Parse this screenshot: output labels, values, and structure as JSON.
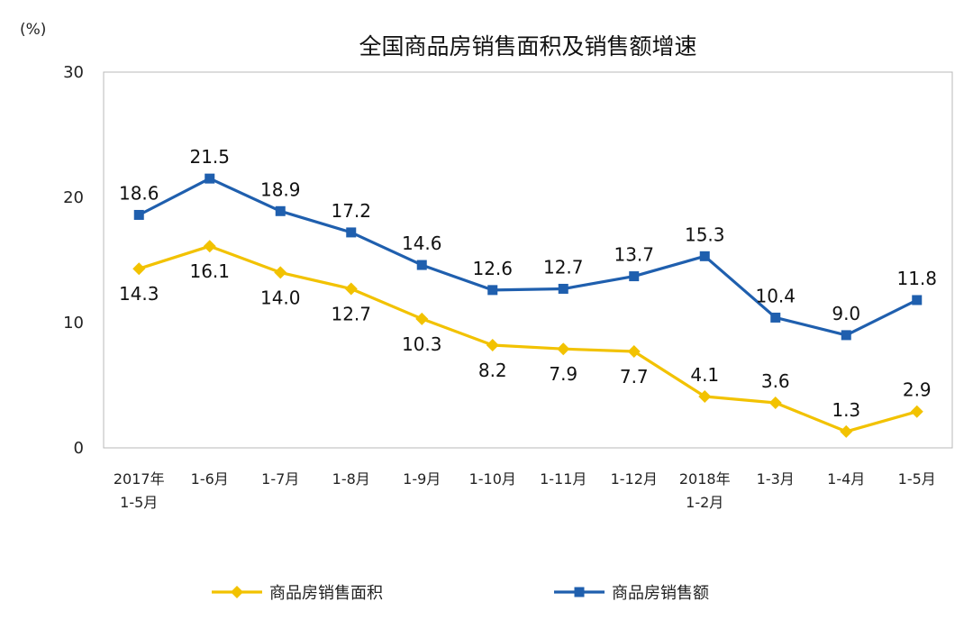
{
  "chart_data": {
    "type": "line",
    "title": "全国商品房销售面积及销售额增速",
    "unit_label": "(%)",
    "categories": [
      [
        "2017年",
        "1-5月"
      ],
      [
        "1-6月"
      ],
      [
        "1-7月"
      ],
      [
        "1-8月"
      ],
      [
        "1-9月"
      ],
      [
        "1-10月"
      ],
      [
        "1-11月"
      ],
      [
        "1-12月"
      ],
      [
        "2018年",
        "1-2月"
      ],
      [
        "1-3月"
      ],
      [
        "1-4月"
      ],
      [
        "1-5月"
      ]
    ],
    "ylim": [
      0,
      30
    ],
    "yticks": [
      0,
      10,
      20,
      30
    ],
    "grid": false,
    "legend_position": "bottom",
    "series": [
      {
        "name": "商品房销售面积",
        "color": "#F2C200",
        "marker": "diamond",
        "values": [
          14.3,
          16.1,
          14.0,
          12.7,
          10.3,
          8.2,
          7.9,
          7.7,
          4.1,
          3.6,
          1.3,
          2.9
        ],
        "labels": [
          "14.3",
          "16.1",
          "14.0",
          "12.7",
          "10.3",
          "8.2",
          "7.9",
          "7.7",
          "4.1",
          "3.6",
          "1.3",
          "2.9"
        ]
      },
      {
        "name": "商品房销售额",
        "color": "#1F5FAE",
        "marker": "square",
        "values": [
          18.6,
          21.5,
          18.9,
          17.2,
          14.6,
          12.6,
          12.7,
          13.7,
          15.3,
          10.4,
          9.0,
          11.8
        ],
        "labels": [
          "18.6",
          "21.5",
          "18.9",
          "17.2",
          "14.6",
          "12.6",
          "12.7",
          "13.7",
          "15.3",
          "10.4",
          "9.0",
          "11.8"
        ]
      }
    ]
  }
}
